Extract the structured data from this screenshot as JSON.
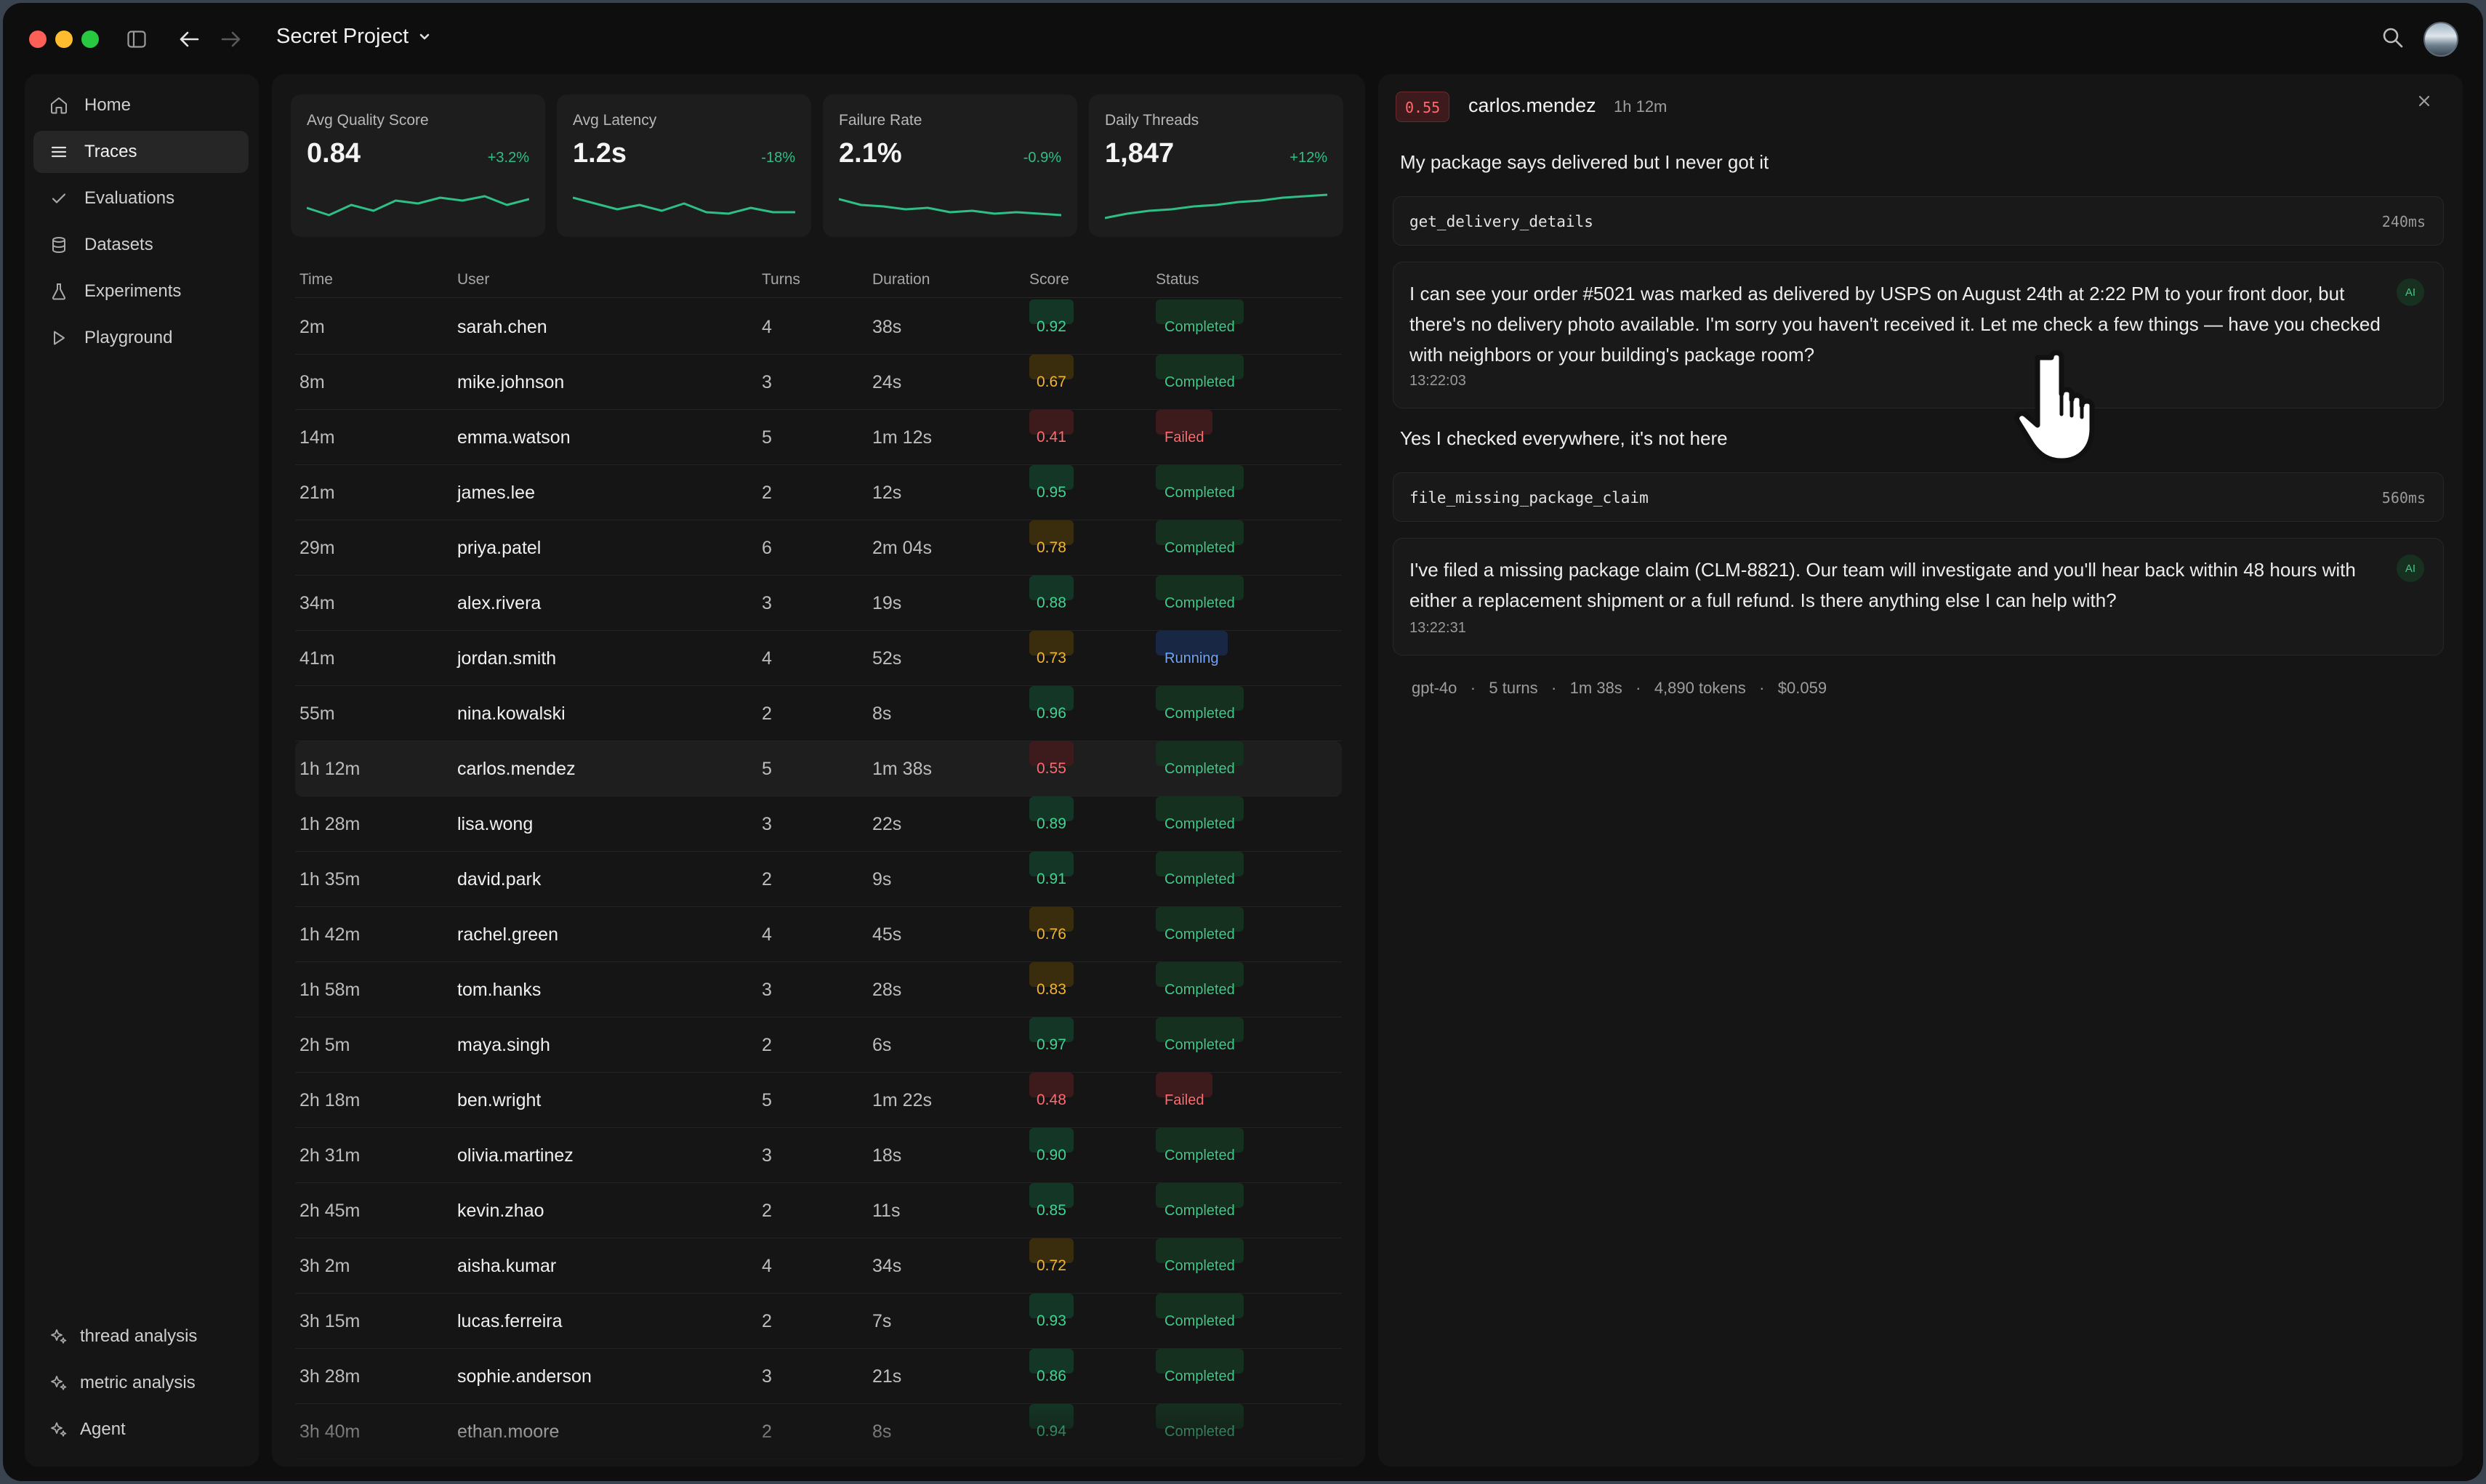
{
  "project": {
    "name": "Secret Project"
  },
  "sidebar": {
    "items": [
      {
        "label": "Home",
        "icon": "home-icon",
        "active": false
      },
      {
        "label": "Traces",
        "icon": "list-icon",
        "active": true
      },
      {
        "label": "Evaluations",
        "icon": "check-icon",
        "active": false
      },
      {
        "label": "Datasets",
        "icon": "database-icon",
        "active": false
      },
      {
        "label": "Experiments",
        "icon": "flask-icon",
        "active": false
      },
      {
        "label": "Playground",
        "icon": "play-icon",
        "active": false
      }
    ],
    "bottom": [
      {
        "label": "thread analysis",
        "icon": "sparkle-icon"
      },
      {
        "label": "metric analysis",
        "icon": "sparkle-icon"
      },
      {
        "label": "Agent",
        "icon": "sparkle-icon"
      }
    ]
  },
  "metrics": [
    {
      "label": "Avg Quality Score",
      "value": "0.84",
      "change": "+3.2%",
      "trend": [
        0.45,
        0.2,
        0.55,
        0.35,
        0.7,
        0.6,
        0.8,
        0.7,
        0.85,
        0.55,
        0.75
      ]
    },
    {
      "label": "Avg Latency",
      "value": "1.2s",
      "change": "-18%",
      "trend": [
        0.8,
        0.6,
        0.4,
        0.55,
        0.35,
        0.6,
        0.3,
        0.25,
        0.45,
        0.3,
        0.3
      ]
    },
    {
      "label": "Failure Rate",
      "value": "2.1%",
      "change": "-0.9%",
      "trend": [
        0.75,
        0.55,
        0.5,
        0.4,
        0.45,
        0.3,
        0.35,
        0.25,
        0.3,
        0.25,
        0.2
      ]
    },
    {
      "label": "Daily Threads",
      "value": "1,847",
      "change": "+12%",
      "trend": [
        0.1,
        0.25,
        0.35,
        0.4,
        0.5,
        0.55,
        0.65,
        0.7,
        0.8,
        0.85,
        0.9
      ]
    }
  ],
  "colors": {
    "accent_green": "#2fbf86",
    "danger": "#ff6a6f",
    "warning": "#f2b530",
    "info": "#6ea6ff"
  },
  "table": {
    "columns": [
      "Time",
      "User",
      "Turns",
      "Duration",
      "Score",
      "Status"
    ],
    "rows": [
      {
        "time": "2m",
        "user": "sarah.chen",
        "turns": "4",
        "duration": "38s",
        "score": "0.92",
        "status": "Completed"
      },
      {
        "time": "8m",
        "user": "mike.johnson",
        "turns": "3",
        "duration": "24s",
        "score": "0.67",
        "status": "Completed"
      },
      {
        "time": "14m",
        "user": "emma.watson",
        "turns": "5",
        "duration": "1m 12s",
        "score": "0.41",
        "status": "Failed"
      },
      {
        "time": "21m",
        "user": "james.lee",
        "turns": "2",
        "duration": "12s",
        "score": "0.95",
        "status": "Completed"
      },
      {
        "time": "29m",
        "user": "priya.patel",
        "turns": "6",
        "duration": "2m 04s",
        "score": "0.78",
        "status": "Completed"
      },
      {
        "time": "34m",
        "user": "alex.rivera",
        "turns": "3",
        "duration": "19s",
        "score": "0.88",
        "status": "Completed"
      },
      {
        "time": "41m",
        "user": "jordan.smith",
        "turns": "4",
        "duration": "52s",
        "score": "0.73",
        "status": "Running"
      },
      {
        "time": "55m",
        "user": "nina.kowalski",
        "turns": "2",
        "duration": "8s",
        "score": "0.96",
        "status": "Completed"
      },
      {
        "time": "1h 12m",
        "user": "carlos.mendez",
        "turns": "5",
        "duration": "1m 38s",
        "score": "0.55",
        "status": "Completed"
      },
      {
        "time": "1h 28m",
        "user": "lisa.wong",
        "turns": "3",
        "duration": "22s",
        "score": "0.89",
        "status": "Completed"
      },
      {
        "time": "1h 35m",
        "user": "david.park",
        "turns": "2",
        "duration": "9s",
        "score": "0.91",
        "status": "Completed"
      },
      {
        "time": "1h 42m",
        "user": "rachel.green",
        "turns": "4",
        "duration": "45s",
        "score": "0.76",
        "status": "Completed"
      },
      {
        "time": "1h 58m",
        "user": "tom.hanks",
        "turns": "3",
        "duration": "28s",
        "score": "0.83",
        "status": "Completed"
      },
      {
        "time": "2h 5m",
        "user": "maya.singh",
        "turns": "2",
        "duration": "6s",
        "score": "0.97",
        "status": "Completed"
      },
      {
        "time": "2h 18m",
        "user": "ben.wright",
        "turns": "5",
        "duration": "1m 22s",
        "score": "0.48",
        "status": "Failed"
      },
      {
        "time": "2h 31m",
        "user": "olivia.martinez",
        "turns": "3",
        "duration": "18s",
        "score": "0.90",
        "status": "Completed"
      },
      {
        "time": "2h 45m",
        "user": "kevin.zhao",
        "turns": "2",
        "duration": "11s",
        "score": "0.85",
        "status": "Completed"
      },
      {
        "time": "3h 2m",
        "user": "aisha.kumar",
        "turns": "4",
        "duration": "34s",
        "score": "0.72",
        "status": "Completed"
      },
      {
        "time": "3h 15m",
        "user": "lucas.ferreira",
        "turns": "2",
        "duration": "7s",
        "score": "0.93",
        "status": "Completed"
      },
      {
        "time": "3h 28m",
        "user": "sophie.anderson",
        "turns": "3",
        "duration": "21s",
        "score": "0.86",
        "status": "Completed"
      },
      {
        "time": "3h 40m",
        "user": "ethan.moore",
        "turns": "2",
        "duration": "8s",
        "score": "0.94",
        "status": "Completed"
      }
    ]
  },
  "detail": {
    "score": "0.55",
    "user": "carlos.mendez",
    "ago": "1h 12m",
    "messages": {
      "user_1": "My package says delivered but I never got it",
      "tool_1": {
        "name": "get_delivery_details",
        "ms": "240ms"
      },
      "ai_1": {
        "text": "I can see your order #5021 was marked as delivered by USPS on August 24th at 2:22 PM to your front door, but there's no delivery photo available. I'm sorry you haven't received it. Let me check a few things — have you checked with neighbors or your building's package room?",
        "time": "13:22:03",
        "tag": "AI"
      },
      "user_2": "Yes I checked everywhere, it's not here",
      "tool_2": {
        "name": "file_missing_package_claim",
        "ms": "560ms"
      },
      "ai_2": {
        "text": "I've filed a missing package claim (CLM-8821). Our team will investigate and you'll hear back within 48 hours with either a replacement shipment or a full refund. Is there anything else I can help with?",
        "time": "13:22:31",
        "tag": "AI"
      }
    },
    "meta": {
      "model": "gpt-4o",
      "turns": "5 turns",
      "duration": "1m 38s",
      "tokens": "4,890 tokens",
      "cost": "$0.059"
    }
  }
}
